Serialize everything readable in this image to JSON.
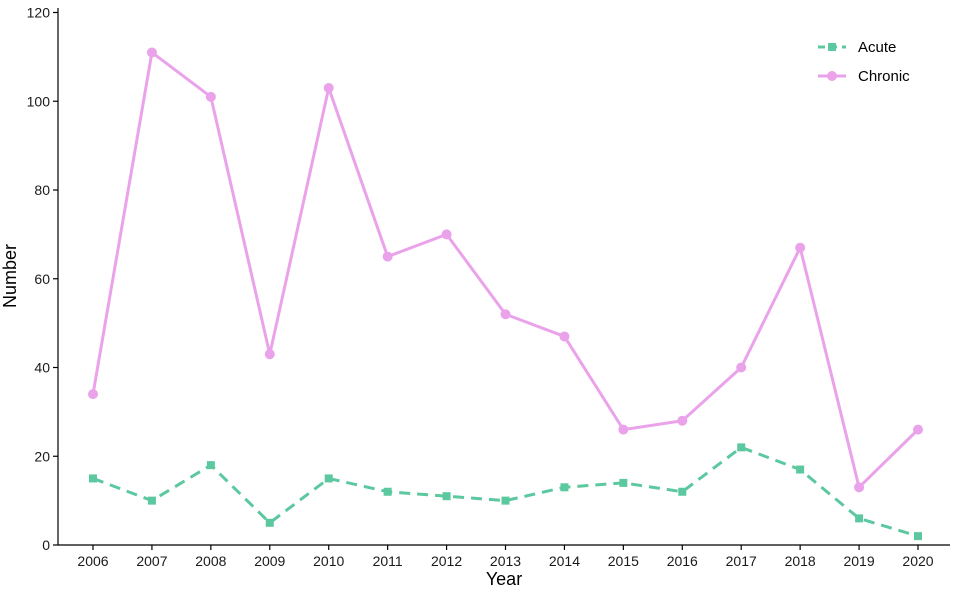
{
  "chart_data": {
    "type": "line",
    "title": "",
    "xlabel": "Year",
    "ylabel": "Number",
    "x": [
      2006,
      2007,
      2008,
      2009,
      2010,
      2011,
      2012,
      2013,
      2014,
      2015,
      2016,
      2017,
      2018,
      2019,
      2020
    ],
    "x_tick_labels": [
      "2006",
      "2007",
      "2008",
      "2009",
      "2010",
      "2011",
      "2012",
      "2013",
      "2014",
      "2015",
      "2016",
      "2017",
      "2018",
      "2019",
      "2020"
    ],
    "y_ticks": [
      0,
      20,
      40,
      60,
      80,
      100,
      120
    ],
    "y_tick_labels": [
      "0",
      "20",
      "40",
      "60",
      "80",
      "100",
      "120"
    ],
    "ylim": [
      0,
      120
    ],
    "grid": false,
    "legend_position": "top-right",
    "series": [
      {
        "name": "Acute",
        "color": "#5cc8a0",
        "line_style": "dashed",
        "marker": "square",
        "values": [
          15,
          10,
          18,
          5,
          15,
          12,
          11,
          10,
          13,
          14,
          12,
          22,
          17,
          6,
          2
        ]
      },
      {
        "name": "Chronic",
        "color": "#eaa3ea",
        "line_style": "solid",
        "marker": "circle",
        "values": [
          34,
          111,
          101,
          43,
          103,
          65,
          70,
          52,
          47,
          26,
          28,
          40,
          67,
          13,
          26
        ]
      }
    ]
  }
}
